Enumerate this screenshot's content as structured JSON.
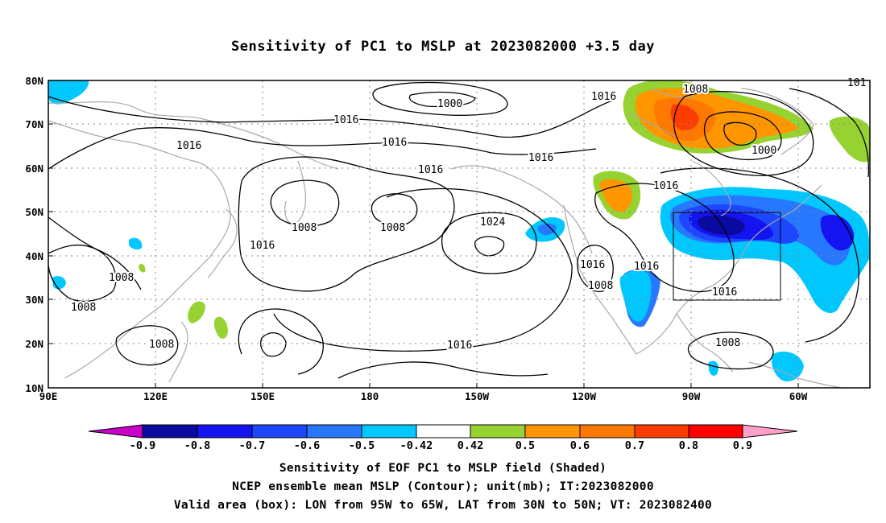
{
  "title": "Sensitivity of PC1 to MSLP at 2023082000 +3.5 day",
  "map": {
    "projection": "lat-lon",
    "lon_range": [
      "90E",
      "50W"
    ],
    "lat_range": [
      "10N",
      "80N"
    ],
    "x_ticks": [
      "90E",
      "120E",
      "150E",
      "180",
      "150W",
      "120W",
      "90W",
      "60W"
    ],
    "y_ticks": [
      "10N",
      "20N",
      "30N",
      "40N",
      "50N",
      "60N",
      "70N",
      "80N"
    ],
    "grid": "dotted",
    "coastline_color": "#a9a9a9",
    "contour_color": "#000000",
    "valid_box": "95W-65W, 30N-50N"
  },
  "contour_labels": {
    "a": "1000",
    "b": "1016",
    "c": "1016",
    "d": "1016",
    "e": "1016",
    "f": "1008",
    "g": "1008",
    "h": "1016",
    "i": "1008",
    "j": "1008",
    "k": "1008",
    "l": "1024",
    "m": "1016",
    "n": "1016",
    "o": "1016",
    "p": "1016",
    "q": "1016",
    "r": "1008",
    "s": "1016",
    "t": "1008",
    "u": "1000",
    "v": "1008",
    "w": "101"
  },
  "colorbar": {
    "labels": [
      "-0.9",
      "-0.8",
      "-0.7",
      "-0.6",
      "-0.5",
      "-0.42",
      "0.42",
      "0.5",
      "0.6",
      "0.7",
      "0.8",
      "0.9"
    ],
    "colors": {
      "lt_m09": "#c800c8",
      "m09_m08": "#0a0aa0",
      "m08_m07": "#1414f0",
      "m07_m06": "#1e46ff",
      "m06_m05": "#2878ff",
      "m05_m042": "#00c8ff",
      "neutral": "#ffffff",
      "p042_p05": "#96d232",
      "p05_p06": "#ff9600",
      "p06_p07": "#ff7800",
      "p07_p08": "#ff3c00",
      "p08_p09": "#ff0000",
      "gt_p09": "#ffa0c8"
    }
  },
  "captions": {
    "line1": "Sensitivity of EOF PC1 to MSLP field (Shaded)",
    "line2": "NCEP ensemble mean MSLP (Contour); unit(mb); IT:2023082000",
    "line3": "Valid area (box): LON from 95W to 65W, LAT from 30N to 50N; VT: 2023082400"
  }
}
